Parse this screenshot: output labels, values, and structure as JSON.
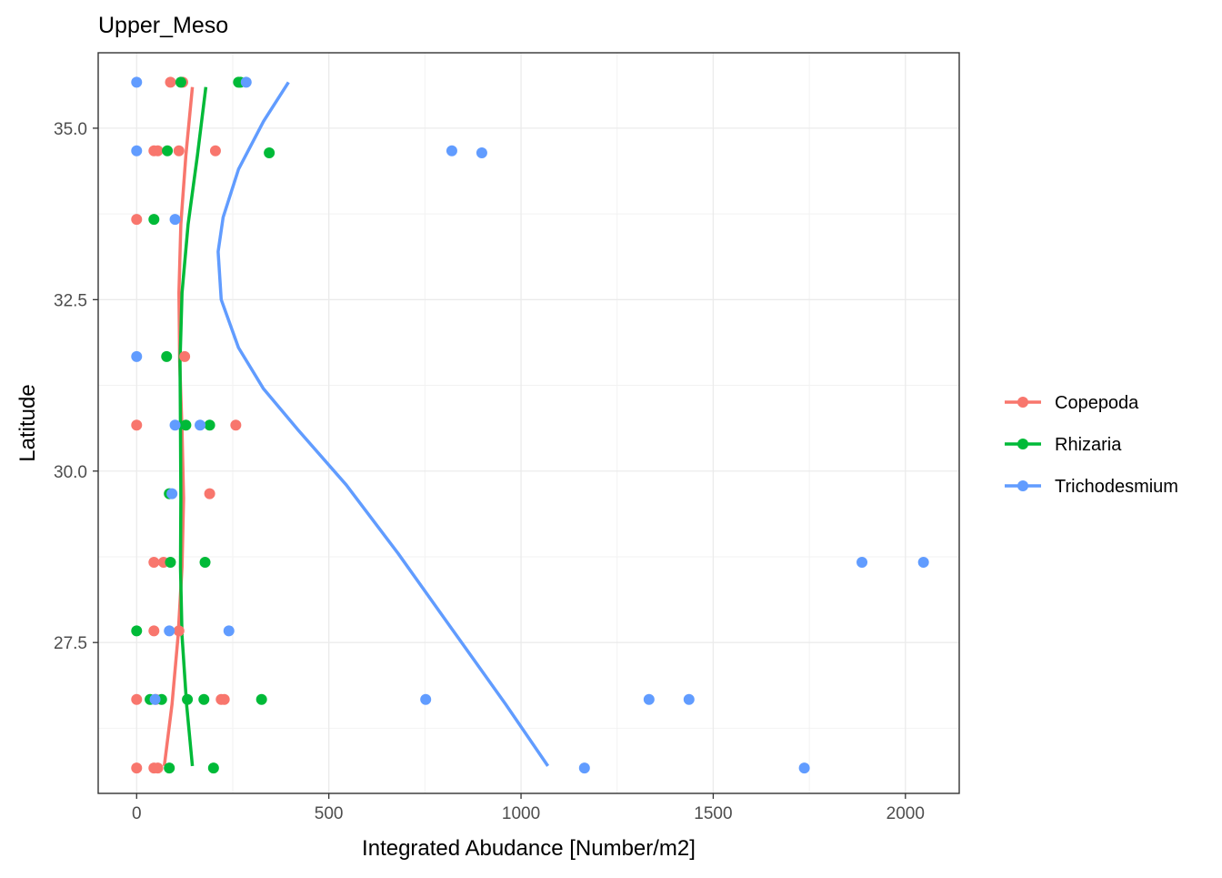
{
  "chart_data": {
    "type": "scatter",
    "title": "Upper_Meso",
    "xlabel": "Integrated Abudance [Number/m2]",
    "ylabel": "Latitude",
    "xlim": [
      -100,
      2140
    ],
    "ylim": [
      25.3,
      36.1
    ],
    "x_ticks": [
      0,
      500,
      1000,
      1500,
      2000
    ],
    "x_tick_labels": [
      "0",
      "500",
      "1000",
      "1500",
      "2000"
    ],
    "y_ticks": [
      27.5,
      30.0,
      32.5,
      35.0
    ],
    "y_tick_labels": [
      "27.5",
      "30.0",
      "32.5",
      "35.0"
    ],
    "grid": true,
    "legend_position": "right",
    "series": [
      {
        "name": "Copepoda",
        "color": "#F8766D",
        "points": [
          {
            "x": 88,
            "y": 35.67
          },
          {
            "x": 120,
            "y": 35.67
          },
          {
            "x": 45,
            "y": 34.67
          },
          {
            "x": 55,
            "y": 34.67
          },
          {
            "x": 110,
            "y": 34.67
          },
          {
            "x": 205,
            "y": 34.67
          },
          {
            "x": 0,
            "y": 33.67
          },
          {
            "x": 125,
            "y": 31.67
          },
          {
            "x": 0,
            "y": 30.67
          },
          {
            "x": 258,
            "y": 30.67
          },
          {
            "x": 190,
            "y": 29.67
          },
          {
            "x": 45,
            "y": 28.67
          },
          {
            "x": 70,
            "y": 28.67
          },
          {
            "x": 45,
            "y": 27.67
          },
          {
            "x": 110,
            "y": 27.67
          },
          {
            "x": 0,
            "y": 26.67
          },
          {
            "x": 50,
            "y": 26.67
          },
          {
            "x": 220,
            "y": 26.67
          },
          {
            "x": 228,
            "y": 26.67
          },
          {
            "x": 0,
            "y": 25.67
          },
          {
            "x": 45,
            "y": 25.67
          },
          {
            "x": 55,
            "y": 25.67
          }
        ],
        "trend": [
          {
            "x": 145,
            "y": 35.6
          },
          {
            "x": 128,
            "y": 34.6
          },
          {
            "x": 115,
            "y": 33.6
          },
          {
            "x": 110,
            "y": 32.6
          },
          {
            "x": 112,
            "y": 31.6
          },
          {
            "x": 118,
            "y": 30.6
          },
          {
            "x": 122,
            "y": 29.6
          },
          {
            "x": 118,
            "y": 28.6
          },
          {
            "x": 108,
            "y": 27.6
          },
          {
            "x": 92,
            "y": 26.6
          },
          {
            "x": 72,
            "y": 25.7
          }
        ]
      },
      {
        "name": "Rhizaria",
        "color": "#00BA38",
        "points": [
          {
            "x": 115,
            "y": 35.67
          },
          {
            "x": 265,
            "y": 35.67
          },
          {
            "x": 270,
            "y": 35.67
          },
          {
            "x": 80,
            "y": 34.67
          },
          {
            "x": 345,
            "y": 34.64
          },
          {
            "x": 45,
            "y": 33.67
          },
          {
            "x": 78,
            "y": 31.67
          },
          {
            "x": 128,
            "y": 30.67
          },
          {
            "x": 190,
            "y": 30.67
          },
          {
            "x": 85,
            "y": 29.67
          },
          {
            "x": 88,
            "y": 28.67
          },
          {
            "x": 178,
            "y": 28.67
          },
          {
            "x": 0,
            "y": 27.67
          },
          {
            "x": 35,
            "y": 26.67
          },
          {
            "x": 65,
            "y": 26.67
          },
          {
            "x": 132,
            "y": 26.67
          },
          {
            "x": 175,
            "y": 26.67
          },
          {
            "x": 325,
            "y": 26.67
          },
          {
            "x": 85,
            "y": 25.67
          },
          {
            "x": 200,
            "y": 25.67
          }
        ],
        "trend": [
          {
            "x": 180,
            "y": 35.6
          },
          {
            "x": 158,
            "y": 34.6
          },
          {
            "x": 134,
            "y": 33.6
          },
          {
            "x": 118,
            "y": 32.6
          },
          {
            "x": 113,
            "y": 31.6
          },
          {
            "x": 114,
            "y": 30.6
          },
          {
            "x": 115,
            "y": 29.6
          },
          {
            "x": 114,
            "y": 28.6
          },
          {
            "x": 118,
            "y": 27.6
          },
          {
            "x": 130,
            "y": 26.6
          },
          {
            "x": 145,
            "y": 25.7
          }
        ]
      },
      {
        "name": "Trichodesmium",
        "color": "#619CFF",
        "points": [
          {
            "x": 0,
            "y": 35.67
          },
          {
            "x": 285,
            "y": 35.67
          },
          {
            "x": 0,
            "y": 34.67
          },
          {
            "x": 820,
            "y": 34.67
          },
          {
            "x": 898,
            "y": 34.64
          },
          {
            "x": 100,
            "y": 33.67
          },
          {
            "x": 0,
            "y": 31.67
          },
          {
            "x": 100,
            "y": 30.67
          },
          {
            "x": 165,
            "y": 30.67
          },
          {
            "x": 92,
            "y": 29.67
          },
          {
            "x": 1887,
            "y": 28.67
          },
          {
            "x": 2047,
            "y": 28.67
          },
          {
            "x": 85,
            "y": 27.67
          },
          {
            "x": 240,
            "y": 27.67
          },
          {
            "x": 48,
            "y": 26.67
          },
          {
            "x": 752,
            "y": 26.67
          },
          {
            "x": 1333,
            "y": 26.67
          },
          {
            "x": 1437,
            "y": 26.67
          },
          {
            "x": 1165,
            "y": 25.67
          },
          {
            "x": 1737,
            "y": 25.67
          }
        ],
        "trend": [
          {
            "x": 395,
            "y": 35.67
          },
          {
            "x": 330,
            "y": 35.1
          },
          {
            "x": 265,
            "y": 34.4
          },
          {
            "x": 225,
            "y": 33.7
          },
          {
            "x": 212,
            "y": 33.2
          },
          {
            "x": 220,
            "y": 32.5
          },
          {
            "x": 265,
            "y": 31.8
          },
          {
            "x": 330,
            "y": 31.2
          },
          {
            "x": 420,
            "y": 30.6
          },
          {
            "x": 545,
            "y": 29.8
          },
          {
            "x": 680,
            "y": 28.8
          },
          {
            "x": 820,
            "y": 27.7
          },
          {
            "x": 960,
            "y": 26.6
          },
          {
            "x": 1070,
            "y": 25.7
          }
        ]
      }
    ]
  }
}
